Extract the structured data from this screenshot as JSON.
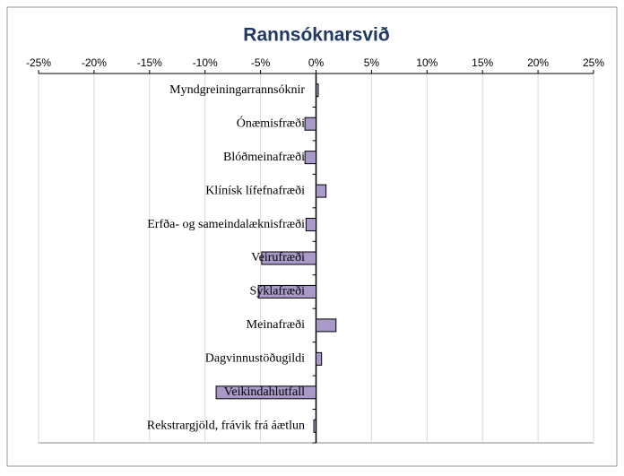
{
  "chart_data": {
    "type": "hbar",
    "title": "Rannsóknarsvið",
    "categories": [
      "Myndgreiningarrannsóknir",
      "Ónæmisfræði",
      "Blóðmeinafræði",
      "Klínísk lífefnafræði",
      "Erfða- og sameindalæknisfræði",
      "Veirufræði",
      "Sýklafræði",
      "Meinafræði",
      "Dagvinnustöðugildi",
      "Veikindahlutfall",
      "Rekstrargjöld, frávik frá áætlun"
    ],
    "values": [
      0.2,
      -1.0,
      -1.0,
      0.9,
      -0.9,
      -4.9,
      -5.2,
      1.8,
      0.5,
      -9.0,
      -0.2
    ],
    "color": "#a899c8",
    "xlim": [
      -25,
      25
    ],
    "xticks": [
      {
        "value": -25,
        "label": "-25%"
      },
      {
        "value": -20,
        "label": "-20%"
      },
      {
        "value": -15,
        "label": "-15%"
      },
      {
        "value": -10,
        "label": "-10%"
      },
      {
        "value": -5,
        "label": "-5%"
      },
      {
        "value": 0,
        "label": "0%"
      },
      {
        "value": 5,
        "label": "5%"
      },
      {
        "value": 10,
        "label": "10%"
      },
      {
        "value": 15,
        "label": "15%"
      },
      {
        "value": 20,
        "label": "20%"
      },
      {
        "value": 25,
        "label": "25%"
      }
    ],
    "grid": true
  }
}
